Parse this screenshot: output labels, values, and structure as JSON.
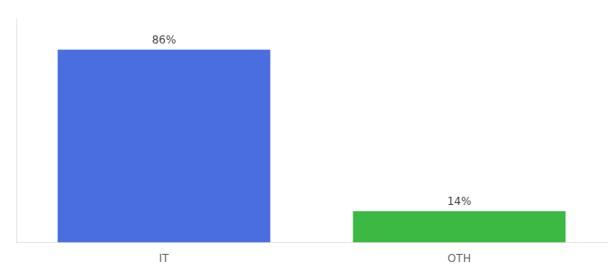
{
  "chart_data": {
    "type": "bar",
    "categories": [
      "IT",
      "OTH"
    ],
    "values": [
      86,
      14
    ],
    "value_labels": [
      "86%",
      "14%"
    ],
    "colors": [
      "#4a6ee0",
      "#3cb943"
    ],
    "ylim": [
      0,
      100
    ],
    "grid": false,
    "data_labels": true,
    "tick_labels": "x"
  }
}
